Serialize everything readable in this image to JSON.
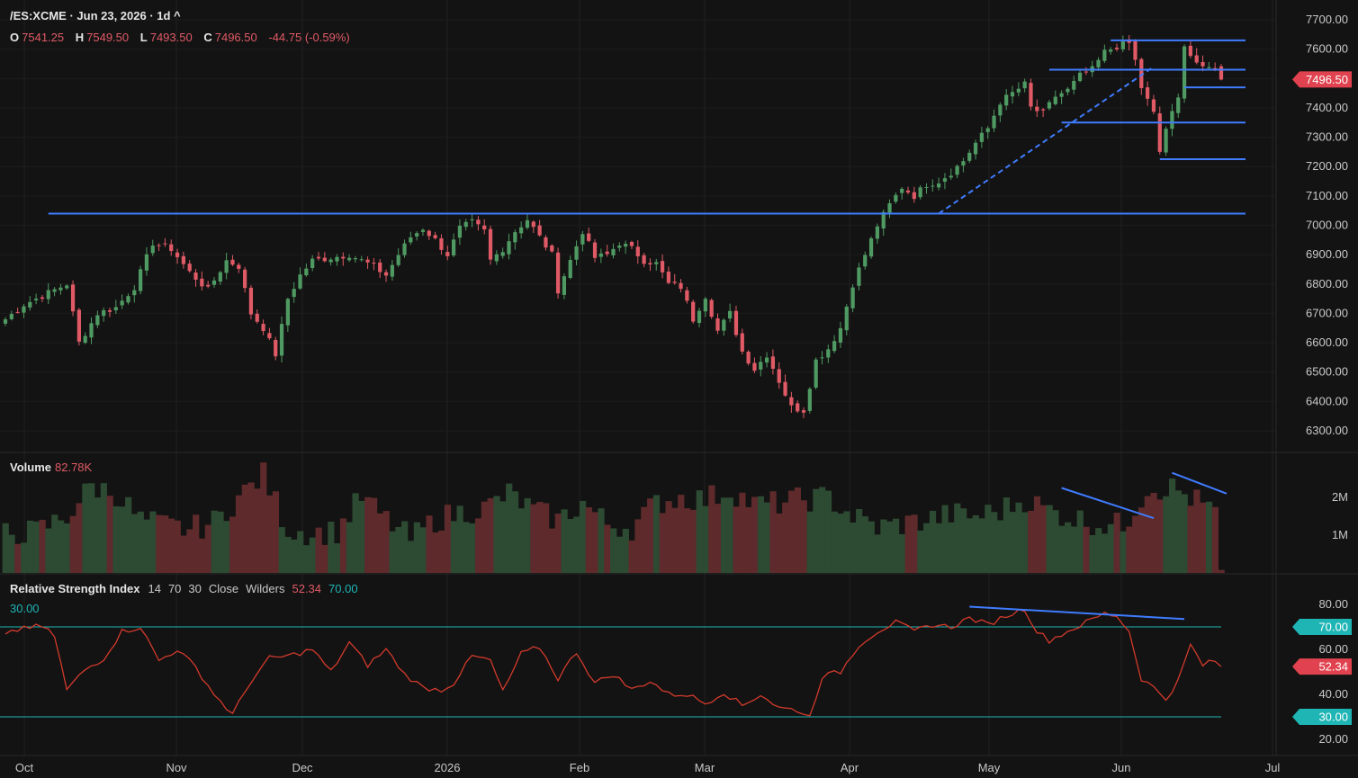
{
  "header": {
    "symbol": "/ES:XCME",
    "date": "Jun 23, 2026",
    "interval": "1d",
    "title_text": "/ES:XCME · Jun 23, 2026 · 1d ^",
    "ohlc": [
      {
        "key": "O",
        "value": "7541.25"
      },
      {
        "key": "H",
        "value": "7549.50"
      },
      {
        "key": "L",
        "value": "7493.50"
      },
      {
        "key": "C",
        "value": "7496.50"
      }
    ],
    "change": "-44.75 (-0.59%)"
  },
  "colors": {
    "background": "#131313",
    "up": "#4f9a62",
    "down": "#e05a66",
    "volume_up": "#2d4a32",
    "volume_down": "#5e2a2b",
    "drawing": "#3f7cff",
    "rsi_line": "#d33a2c",
    "rsi_band": "#1fb5b5",
    "grid": "#222222"
  },
  "volume_panel": {
    "label": "Volume",
    "value": "82.78K",
    "ticks": [
      "2M",
      "1M"
    ]
  },
  "rsi_panel": {
    "label": "Relative Strength Index",
    "params": [
      "14",
      "70",
      "30",
      "Close",
      "Wilders"
    ],
    "current": "52.34",
    "upper": "70.00",
    "lower": "30.00",
    "ticks": [
      "80.00",
      "60.00",
      "40.00",
      "20.00"
    ]
  },
  "price_badge": "7496.50",
  "chart_data": {
    "type": "candlestick",
    "x_labels": [
      "Oct",
      "Nov",
      "Dec",
      "2026",
      "Feb",
      "Mar",
      "Apr",
      "May",
      "Jun",
      "Jul"
    ],
    "y_ticks": [
      7700,
      7600,
      7500,
      7400,
      7300,
      7200,
      7100,
      7000,
      6900,
      6800,
      6700,
      6600,
      6500,
      6400,
      6300
    ],
    "y_tick_labels": [
      "7700.00",
      "7600.00",
      "7500.00",
      "7400.00",
      "7300.00",
      "7200.00",
      "7100.00",
      "7000.00",
      "6900.00",
      "6800.00",
      "6700.00",
      "6600.00",
      "6500.00",
      "6400.00",
      "6300.00"
    ],
    "ylim": [
      6250,
      7750
    ],
    "close_anchors": [
      [
        0,
        6680
      ],
      [
        3,
        6730
      ],
      [
        7,
        6770
      ],
      [
        10,
        6800
      ],
      [
        12,
        6600
      ],
      [
        15,
        6700
      ],
      [
        18,
        6720
      ],
      [
        21,
        6790
      ],
      [
        24,
        6940
      ],
      [
        27,
        6920
      ],
      [
        30,
        6840
      ],
      [
        33,
        6780
      ],
      [
        36,
        6880
      ],
      [
        38,
        6860
      ],
      [
        40,
        6700
      ],
      [
        42,
        6650
      ],
      [
        44,
        6560
      ],
      [
        46,
        6750
      ],
      [
        48,
        6830
      ],
      [
        50,
        6880
      ],
      [
        53,
        6890
      ],
      [
        56,
        6900
      ],
      [
        58,
        6880
      ],
      [
        60,
        6860
      ],
      [
        62,
        6830
      ],
      [
        64,
        6900
      ],
      [
        66,
        6960
      ],
      [
        68,
        6990
      ],
      [
        70,
        6950
      ],
      [
        72,
        6900
      ],
      [
        74,
        6990
      ],
      [
        76,
        7010
      ],
      [
        78,
        6980
      ],
      [
        79,
        6880
      ],
      [
        81,
        6920
      ],
      [
        83,
        6980
      ],
      [
        85,
        7020
      ],
      [
        87,
        6960
      ],
      [
        89,
        6900
      ],
      [
        90,
        6780
      ],
      [
        92,
        6880
      ],
      [
        94,
        6980
      ],
      [
        96,
        6890
      ],
      [
        98,
        6900
      ],
      [
        100,
        6940
      ],
      [
        102,
        6920
      ],
      [
        104,
        6880
      ],
      [
        106,
        6870
      ],
      [
        108,
        6800
      ],
      [
        110,
        6790
      ],
      [
        112,
        6680
      ],
      [
        114,
        6760
      ],
      [
        116,
        6640
      ],
      [
        118,
        6700
      ],
      [
        120,
        6570
      ],
      [
        122,
        6510
      ],
      [
        124,
        6560
      ],
      [
        126,
        6470
      ],
      [
        128,
        6380
      ],
      [
        130,
        6370
      ],
      [
        132,
        6540
      ],
      [
        134,
        6580
      ],
      [
        136,
        6650
      ],
      [
        138,
        6800
      ],
      [
        140,
        6900
      ],
      [
        142,
        7000
      ],
      [
        144,
        7070
      ],
      [
        146,
        7130
      ],
      [
        148,
        7100
      ],
      [
        150,
        7140
      ],
      [
        152,
        7150
      ],
      [
        154,
        7180
      ],
      [
        156,
        7220
      ],
      [
        158,
        7280
      ],
      [
        160,
        7330
      ],
      [
        162,
        7420
      ],
      [
        164,
        7450
      ],
      [
        166,
        7480
      ],
      [
        167,
        7400
      ],
      [
        169,
        7380
      ],
      [
        171,
        7440
      ],
      [
        173,
        7460
      ],
      [
        175,
        7510
      ],
      [
        177,
        7530
      ],
      [
        179,
        7590
      ],
      [
        181,
        7610
      ],
      [
        183,
        7620
      ],
      [
        184,
        7560
      ],
      [
        185,
        7470
      ],
      [
        187,
        7380
      ],
      [
        188,
        7250
      ],
      [
        189,
        7330
      ],
      [
        191,
        7430
      ],
      [
        192,
        7620
      ],
      [
        193,
        7580
      ],
      [
        195,
        7530
      ],
      [
        197,
        7540
      ],
      [
        198,
        7496.5
      ]
    ],
    "volume_anchors": [
      [
        0,
        1.05
      ],
      [
        5,
        1.1
      ],
      [
        10,
        1.5
      ],
      [
        14,
        2.3
      ],
      [
        18,
        2.1
      ],
      [
        22,
        1.4
      ],
      [
        26,
        1.25
      ],
      [
        30,
        1.15
      ],
      [
        34,
        1.35
      ],
      [
        38,
        2.0
      ],
      [
        42,
        2.6
      ],
      [
        46,
        1.15
      ],
      [
        50,
        1.05
      ],
      [
        54,
        1.1
      ],
      [
        58,
        2.0
      ],
      [
        62,
        1.4
      ],
      [
        66,
        0.9
      ],
      [
        70,
        1.4
      ],
      [
        74,
        1.6
      ],
      [
        78,
        1.7
      ],
      [
        82,
        2.1
      ],
      [
        86,
        1.65
      ],
      [
        90,
        1.4
      ],
      [
        94,
        1.85
      ],
      [
        98,
        1.3
      ],
      [
        102,
        1.2
      ],
      [
        106,
        1.85
      ],
      [
        110,
        2.0
      ],
      [
        114,
        1.95
      ],
      [
        118,
        2.2
      ],
      [
        122,
        1.8
      ],
      [
        126,
        1.85
      ],
      [
        130,
        1.95
      ],
      [
        134,
        2.0
      ],
      [
        138,
        1.5
      ],
      [
        142,
        1.2
      ],
      [
        146,
        1.3
      ],
      [
        150,
        1.4
      ],
      [
        154,
        1.55
      ],
      [
        158,
        1.5
      ],
      [
        162,
        1.65
      ],
      [
        166,
        1.95
      ],
      [
        170,
        1.65
      ],
      [
        174,
        1.45
      ],
      [
        178,
        1.3
      ],
      [
        182,
        1.25
      ],
      [
        186,
        2.25
      ],
      [
        190,
        2.25
      ],
      [
        194,
        1.9
      ],
      [
        197,
        1.6
      ],
      [
        198,
        0.08
      ]
    ],
    "rsi_anchors": [
      [
        0,
        66
      ],
      [
        3,
        70
      ],
      [
        6,
        70
      ],
      [
        8,
        66
      ],
      [
        10,
        42
      ],
      [
        13,
        51
      ],
      [
        16,
        56
      ],
      [
        19,
        68
      ],
      [
        22,
        70
      ],
      [
        25,
        55
      ],
      [
        28,
        60
      ],
      [
        31,
        52
      ],
      [
        34,
        40
      ],
      [
        37,
        31
      ],
      [
        40,
        46
      ],
      [
        43,
        56
      ],
      [
        46,
        57
      ],
      [
        50,
        60
      ],
      [
        53,
        50
      ],
      [
        56,
        63
      ],
      [
        59,
        53
      ],
      [
        62,
        60
      ],
      [
        65,
        49
      ],
      [
        68,
        43
      ],
      [
        71,
        42
      ],
      [
        73,
        45
      ],
      [
        76,
        57
      ],
      [
        79,
        55
      ],
      [
        81,
        41
      ],
      [
        84,
        58
      ],
      [
        87,
        61
      ],
      [
        90,
        47
      ],
      [
        93,
        59
      ],
      [
        96,
        45
      ],
      [
        99,
        49
      ],
      [
        102,
        42
      ],
      [
        105,
        46
      ],
      [
        108,
        40
      ],
      [
        111,
        40
      ],
      [
        114,
        36
      ],
      [
        117,
        41
      ],
      [
        120,
        35
      ],
      [
        123,
        40
      ],
      [
        126,
        34
      ],
      [
        129,
        33
      ],
      [
        131,
        30
      ],
      [
        133,
        48
      ],
      [
        136,
        50
      ],
      [
        139,
        62
      ],
      [
        142,
        68
      ],
      [
        145,
        72
      ],
      [
        148,
        68
      ],
      [
        151,
        71
      ],
      [
        154,
        70
      ],
      [
        157,
        74
      ],
      [
        160,
        71
      ],
      [
        163,
        75
      ],
      [
        166,
        78
      ],
      [
        168,
        68
      ],
      [
        170,
        64
      ],
      [
        173,
        68
      ],
      [
        176,
        72
      ],
      [
        179,
        76
      ],
      [
        181,
        75
      ],
      [
        183,
        68
      ],
      [
        185,
        47
      ],
      [
        187,
        43
      ],
      [
        189,
        38
      ],
      [
        191,
        46
      ],
      [
        193,
        62
      ],
      [
        195,
        53
      ],
      [
        197,
        55
      ],
      [
        198,
        52.34
      ]
    ],
    "rsi_ylim": [
      14,
      92
    ],
    "rsi_levels": [
      70,
      30
    ],
    "annotations": {
      "support_line_7040": 7040,
      "horizontal_levels": [
        {
          "price": 7630,
          "from": 180,
          "to": 202
        },
        {
          "price": 7530,
          "from": 170,
          "to": 202
        },
        {
          "price": 7470,
          "from": 192,
          "to": 202
        },
        {
          "price": 7350,
          "from": 172,
          "to": 202
        },
        {
          "price": 7225,
          "from": 188,
          "to": 202
        }
      ],
      "dashed_trendline": [
        [
          152,
          7040
        ],
        [
          187,
          7540
        ]
      ]
    }
  }
}
